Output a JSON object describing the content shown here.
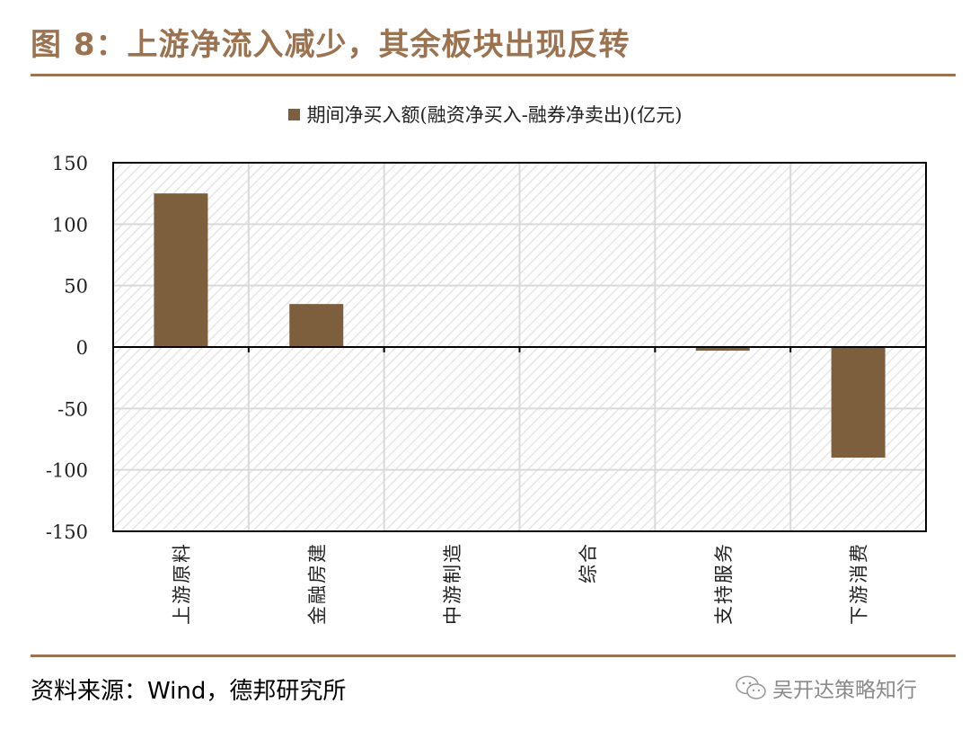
{
  "title": "图 8：上游净流入减少，其余板块出现反转",
  "source": "资料来源：Wind，德邦研究所",
  "watermark": "吴开达策略知行",
  "colors": {
    "accent": "#9c7350",
    "bar": "#7d5f3d"
  },
  "chart_data": {
    "type": "bar",
    "categories": [
      "上游原料",
      "金融房建",
      "中游制造",
      "综合",
      "支持服务",
      "下游消费"
    ],
    "series": [
      {
        "name": "期间净买入额(融资净买入-融券净卖出)(亿元)",
        "values": [
          125,
          35,
          0,
          0,
          -3,
          -90
        ]
      }
    ],
    "ylim": [
      -150,
      150
    ],
    "yticks": [
      "150",
      "100",
      "50",
      "0",
      "-50",
      "-100",
      "-150"
    ],
    "legend_position": "top-center",
    "grid": true
  }
}
